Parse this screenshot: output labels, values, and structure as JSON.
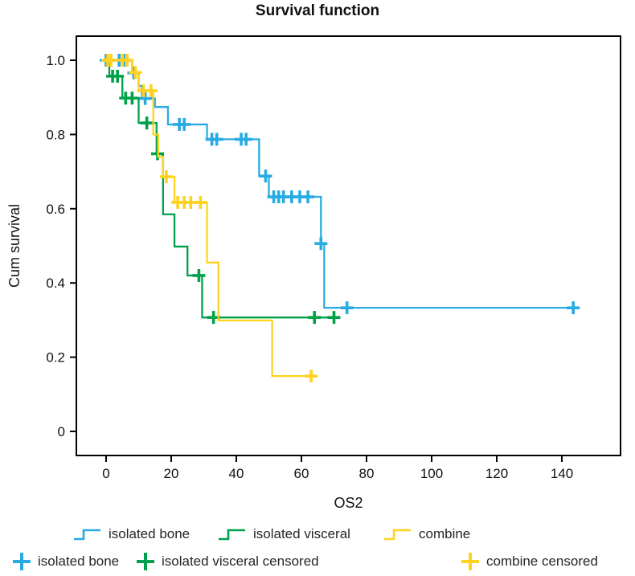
{
  "title": "Survival function",
  "chart_data": {
    "type": "line",
    "subtype": "kaplan-meier-step-function",
    "title": "Survival function",
    "xlabel": "OS2",
    "ylabel": "Cum survival",
    "xlim": [
      -9,
      158
    ],
    "ylim": [
      -0.065,
      1.065
    ],
    "grid": false,
    "x_ticks": [
      0,
      20,
      40,
      60,
      80,
      100,
      120,
      140
    ],
    "y_ticks": [
      1.0,
      0.8,
      0.6,
      0.4,
      0.2,
      0
    ],
    "y_tick_labels": [
      "1.0",
      "0.8",
      "0.6",
      "0.4",
      "0.2",
      "0"
    ],
    "series": [
      {
        "name": "isolated bone",
        "color": "#29ABE2",
        "steps": [
          [
            0,
            1.0
          ],
          [
            8,
            0.966
          ],
          [
            10,
            0.931
          ],
          [
            11,
            0.897
          ],
          [
            15,
            0.874
          ],
          [
            19,
            0.827
          ],
          [
            31,
            0.787
          ],
          [
            47,
            0.688
          ],
          [
            50,
            0.632
          ],
          [
            66,
            0.506
          ],
          [
            67,
            0.333
          ]
        ],
        "end_time": 144,
        "censored": [
          [
            0,
            1.0
          ],
          [
            4,
            1.0
          ],
          [
            5.5,
            1.0
          ],
          [
            8.5,
            0.966
          ],
          [
            12,
            0.897
          ],
          [
            22.5,
            0.827
          ],
          [
            24,
            0.827
          ],
          [
            32.5,
            0.787
          ],
          [
            34,
            0.787
          ],
          [
            41.5,
            0.787
          ],
          [
            43,
            0.787
          ],
          [
            49,
            0.688
          ],
          [
            51.5,
            0.632
          ],
          [
            53,
            0.632
          ],
          [
            54.5,
            0.632
          ],
          [
            57,
            0.632
          ],
          [
            59.5,
            0.632
          ],
          [
            62,
            0.632
          ],
          [
            66,
            0.506
          ],
          [
            74,
            0.333
          ],
          [
            143.5,
            0.333
          ]
        ]
      },
      {
        "name": "isolated visceral",
        "color": "#00A14B",
        "steps": [
          [
            0,
            1.0
          ],
          [
            1,
            0.957
          ],
          [
            5,
            0.898
          ],
          [
            10,
            0.831
          ],
          [
            15.5,
            0.748
          ],
          [
            17.5,
            0.585
          ],
          [
            21,
            0.498
          ],
          [
            25,
            0.42
          ],
          [
            29.5,
            0.307
          ]
        ],
        "end_time": 70.5,
        "censored": [
          [
            2,
            0.957
          ],
          [
            3.5,
            0.957
          ],
          [
            6,
            0.898
          ],
          [
            8,
            0.898
          ],
          [
            12.5,
            0.831
          ],
          [
            15.8,
            0.748
          ],
          [
            28.5,
            0.42
          ],
          [
            33,
            0.307
          ],
          [
            64,
            0.307
          ],
          [
            70,
            0.307
          ]
        ]
      },
      {
        "name": "combine",
        "color": "#FFD21F",
        "steps": [
          [
            0,
            1.0
          ],
          [
            8,
            0.967
          ],
          [
            10,
            0.918
          ],
          [
            14.5,
            0.8
          ],
          [
            16,
            0.74
          ],
          [
            17.5,
            0.686
          ],
          [
            21,
            0.617
          ],
          [
            31,
            0.455
          ],
          [
            34.5,
            0.299
          ],
          [
            51,
            0.149
          ]
        ],
        "end_time": 64,
        "censored": [
          [
            0.5,
            1.0
          ],
          [
            1.5,
            1.0
          ],
          [
            5,
            1.0
          ],
          [
            6.5,
            1.0
          ],
          [
            9,
            0.967
          ],
          [
            11.5,
            0.918
          ],
          [
            13.8,
            0.918
          ],
          [
            18.5,
            0.686
          ],
          [
            22,
            0.617
          ],
          [
            24,
            0.617
          ],
          [
            26,
            0.617
          ],
          [
            29,
            0.617
          ],
          [
            63,
            0.149
          ]
        ]
      }
    ]
  },
  "legend": {
    "row1": [
      {
        "label": "isolated bone",
        "color": "#29ABE2",
        "marker": "step-line"
      },
      {
        "label": "isolated visceral",
        "color": "#00A14B",
        "marker": "step-line"
      },
      {
        "label": "combine",
        "color": "#FFD21F",
        "marker": "step-line"
      }
    ],
    "row2": [
      {
        "label": "isolated bone",
        "color": "#29ABE2",
        "marker": "plus"
      },
      {
        "label": "isolated visceral censored",
        "color": "#00A14B",
        "marker": "plus"
      },
      {
        "label": "combine censored",
        "color": "#FFD21F",
        "marker": "plus"
      }
    ]
  }
}
